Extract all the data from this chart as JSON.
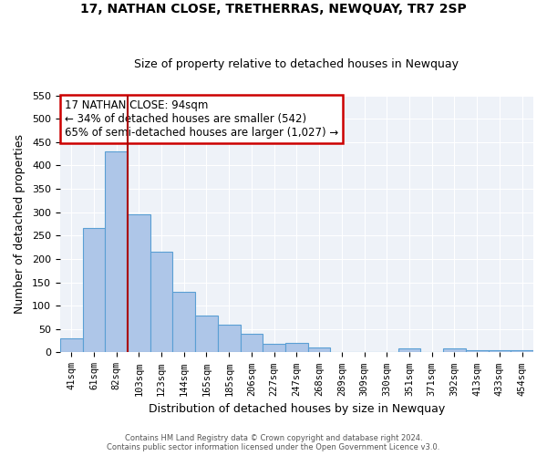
{
  "title": "17, NATHAN CLOSE, TRETHERRAS, NEWQUAY, TR7 2SP",
  "subtitle": "Size of property relative to detached houses in Newquay",
  "xlabel": "Distribution of detached houses by size in Newquay",
  "ylabel": "Number of detached properties",
  "bar_color": "#aec6e8",
  "bar_edge_color": "#5a9fd4",
  "bg_color": "#eef2f8",
  "grid_color": "#ffffff",
  "categories": [
    "41sqm",
    "61sqm",
    "82sqm",
    "103sqm",
    "123sqm",
    "144sqm",
    "165sqm",
    "185sqm",
    "206sqm",
    "227sqm",
    "247sqm",
    "268sqm",
    "289sqm",
    "309sqm",
    "330sqm",
    "351sqm",
    "371sqm",
    "392sqm",
    "413sqm",
    "433sqm",
    "454sqm"
  ],
  "values": [
    30,
    267,
    430,
    295,
    215,
    130,
    78,
    60,
    40,
    18,
    20,
    11,
    0,
    0,
    0,
    8,
    0,
    9,
    5,
    5,
    5
  ],
  "ylim": [
    0,
    550
  ],
  "yticks": [
    0,
    50,
    100,
    150,
    200,
    250,
    300,
    350,
    400,
    450,
    500,
    550
  ],
  "vline_color": "#aa0000",
  "annotation_title": "17 NATHAN CLOSE: 94sqm",
  "annotation_line1": "← 34% of detached houses are smaller (542)",
  "annotation_line2": "65% of semi-detached houses are larger (1,027) →",
  "annotation_box_color": "#cc0000",
  "footer_line1": "Contains HM Land Registry data © Crown copyright and database right 2024.",
  "footer_line2": "Contains public sector information licensed under the Open Government Licence v3.0."
}
